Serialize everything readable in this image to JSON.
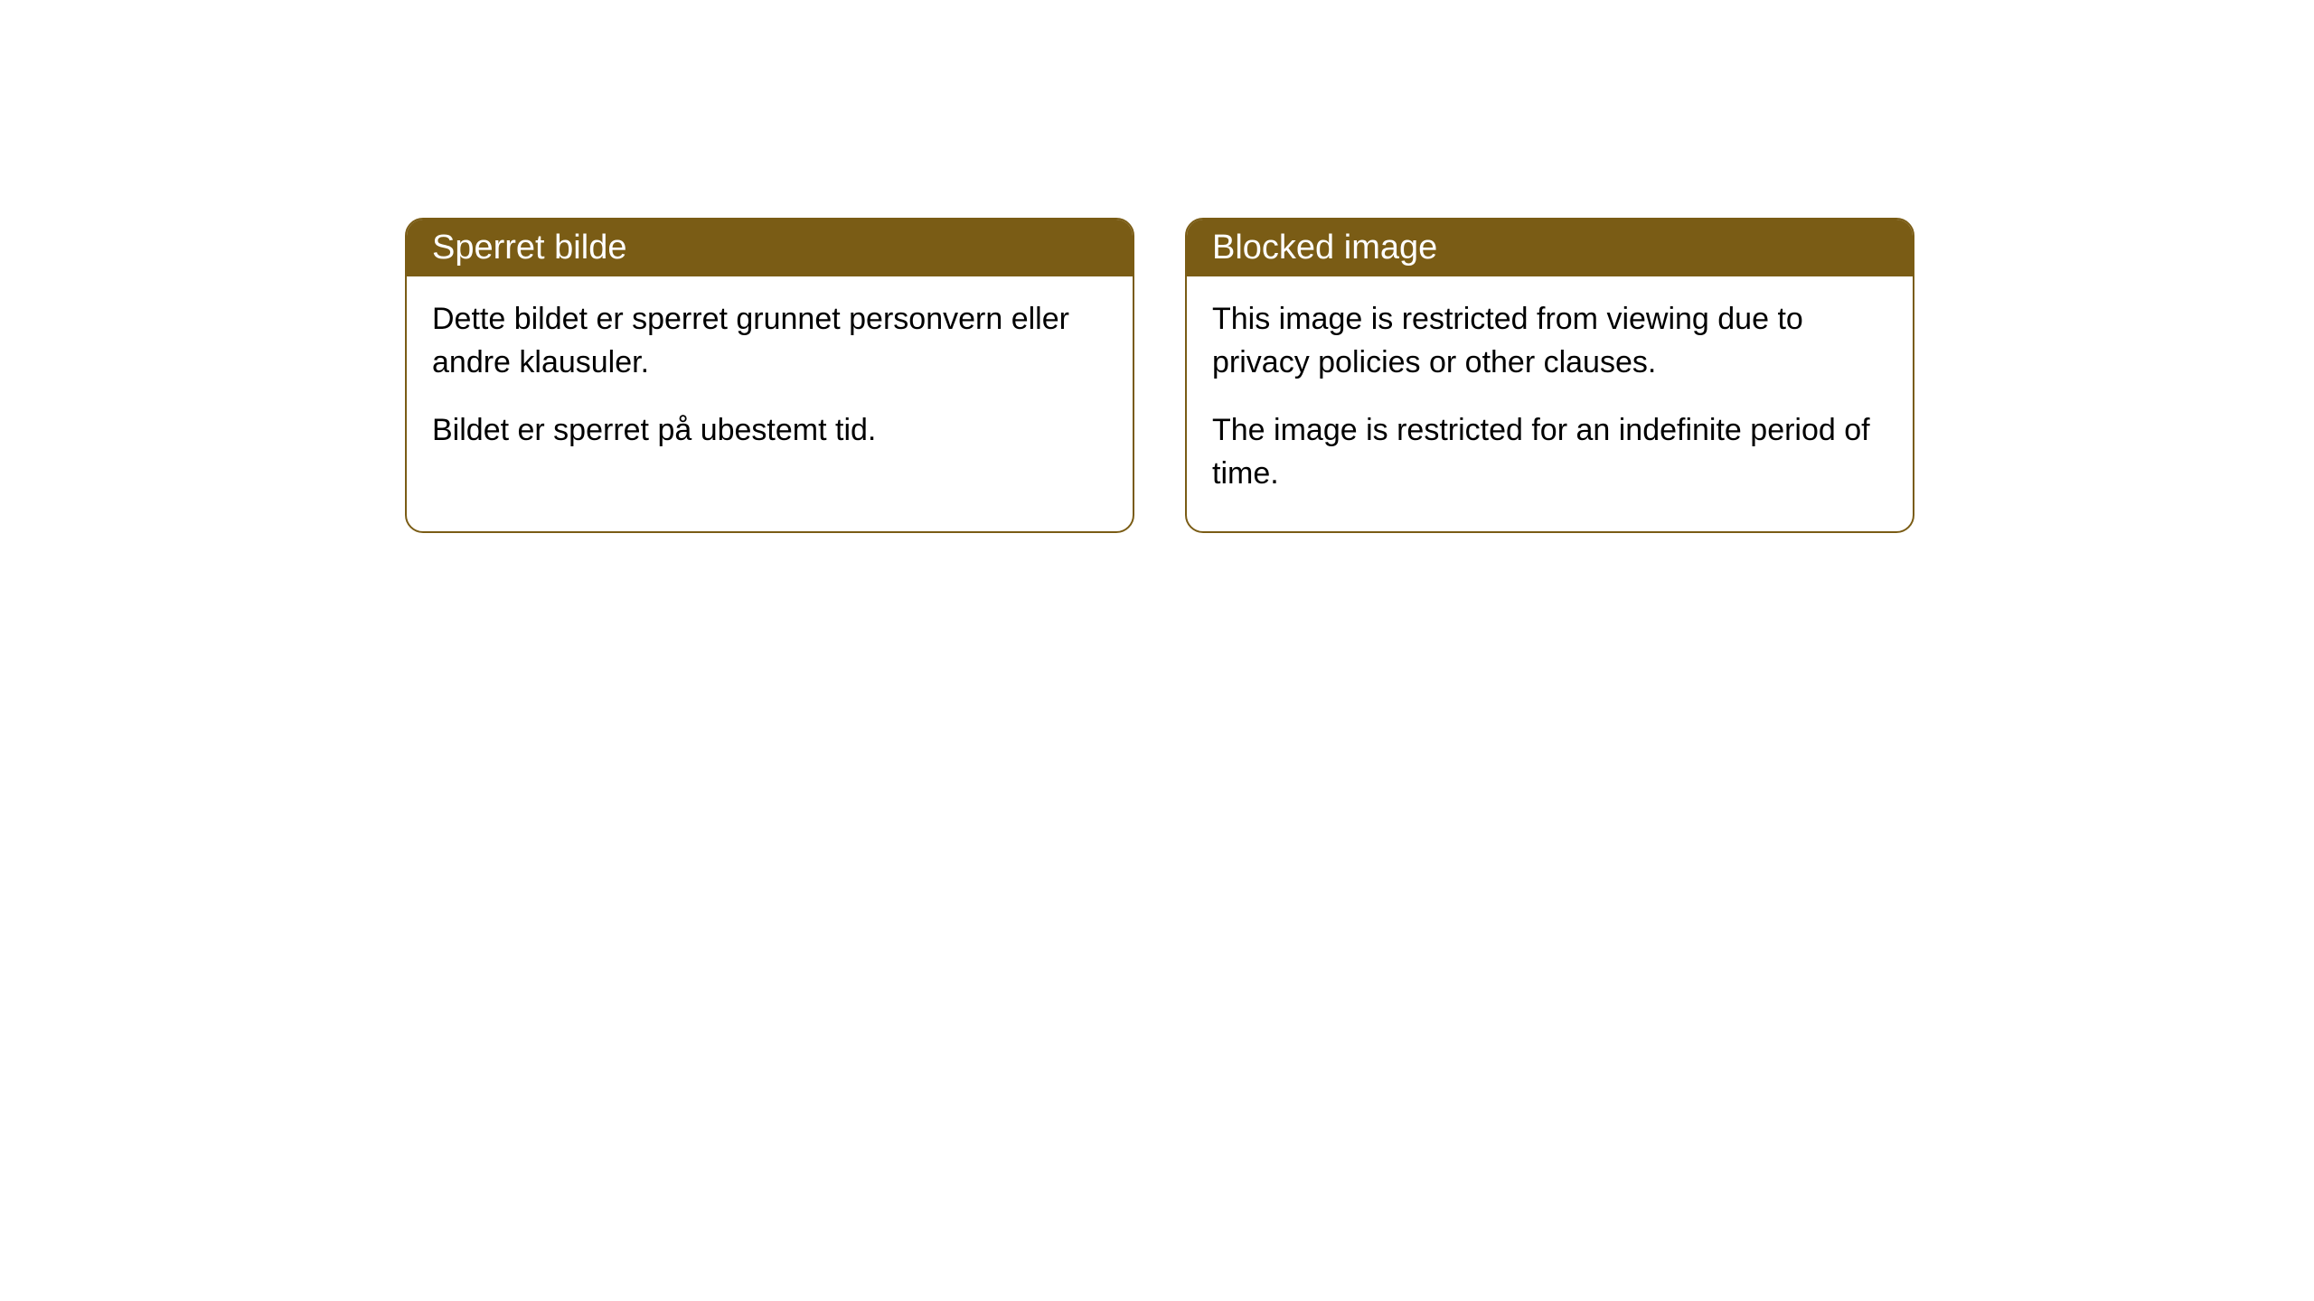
{
  "cards": [
    {
      "title": "Sperret bilde",
      "paragraph1": "Dette bildet er sperret grunnet personvern eller andre klausuler.",
      "paragraph2": "Bildet er sperret på ubestemt tid."
    },
    {
      "title": "Blocked image",
      "paragraph1": "This image is restricted from viewing due to privacy policies or other clauses.",
      "paragraph2": "The image is restricted for an indefinite period of time."
    }
  ],
  "styles": {
    "header_bg_color": "#7a5c15",
    "header_text_color": "#ffffff",
    "border_color": "#7a5c15",
    "body_bg_color": "#ffffff",
    "body_text_color": "#000000",
    "border_radius": 20,
    "header_fontsize": 38,
    "body_fontsize": 34
  }
}
